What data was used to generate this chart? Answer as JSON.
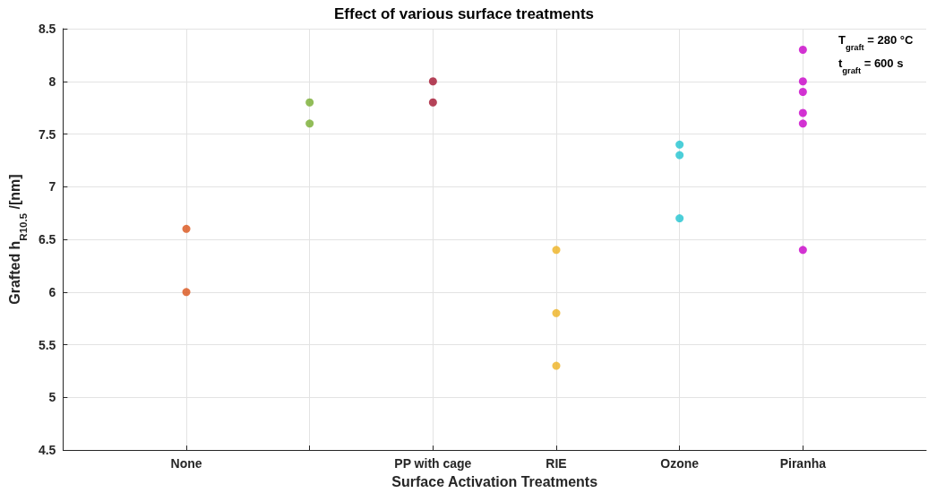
{
  "chart_data": {
    "type": "scatter",
    "title": "Effect of various surface treatments",
    "xlabel": "Surface Activation Treatments",
    "ylabel": "Grafted h$_{R10.5}$ /[nm]",
    "categories": [
      "None",
      null,
      "PP with cage",
      "RIE",
      "Ozone",
      "Piranha"
    ],
    "series": [
      {
        "values": [
          6.6,
          7.8,
          8.0,
          6.4,
          7.4,
          8.3
        ],
        "colors": [
          "#d95319",
          "#77ac30",
          "#a2142f",
          "#edb120",
          "#1fc3cf",
          "#c800c8"
        ]
      },
      {
        "values": [
          6.0,
          7.6,
          7.8,
          5.8,
          7.3,
          8.0
        ],
        "colors": [
          "#d95319",
          "#77ac30",
          "#a2142f",
          "#edb120",
          "#1fc3cf",
          "#c800c8"
        ]
      },
      {
        "values": [
          null,
          null,
          null,
          5.3,
          6.7,
          7.9
        ],
        "colors": [
          "#d95319",
          "#77ac30",
          "#a2142f",
          "#edb120",
          "#1fc3cf",
          "#c800c8"
        ]
      },
      {
        "values": [
          null,
          null,
          null,
          null,
          null,
          7.7
        ],
        "colors": [
          "#d95319",
          "#77ac30",
          "#a2142f",
          "#edb120",
          "#1fc3cf",
          "#c800c8"
        ]
      },
      {
        "values": [
          null,
          null,
          null,
          null,
          null,
          7.6
        ],
        "colors": [
          "#d95319",
          "#77ac30",
          "#a2142f",
          "#edb120",
          "#1fc3cf",
          "#c800c8"
        ]
      },
      {
        "values": [
          null,
          null,
          null,
          null,
          null,
          6.4
        ],
        "colors": [
          "#d95319",
          "#77ac30",
          "#a2142f",
          "#edb120",
          "#1fc3cf",
          "#c800c8"
        ]
      }
    ],
    "ylim": [
      4.5,
      8.5
    ],
    "yticks": [
      4.5,
      5,
      5.5,
      6,
      6.5,
      7,
      7.5,
      8,
      8.5
    ],
    "annotations": [
      "T$_{graft}$ = 280 °C",
      "t$_{graft}$ = 600 s"
    ],
    "grid": true,
    "marker": "circle"
  }
}
